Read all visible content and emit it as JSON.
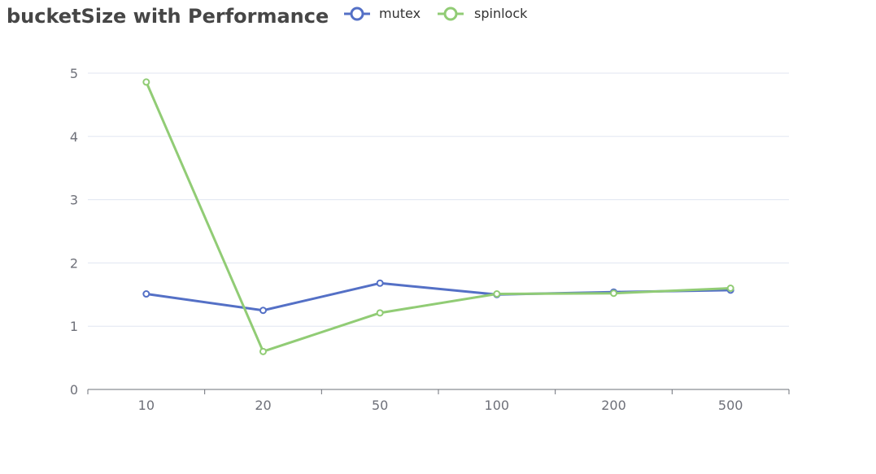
{
  "chart_data": {
    "type": "line",
    "title": "bucketSize with Performance",
    "categories": [
      "10",
      "20",
      "50",
      "100",
      "200",
      "500"
    ],
    "series": [
      {
        "name": "mutex",
        "color": "#5470c6",
        "values": [
          1.51,
          1.25,
          1.68,
          1.5,
          1.54,
          1.57
        ]
      },
      {
        "name": "spinlock",
        "color": "#91cc75",
        "values": [
          4.86,
          0.6,
          1.21,
          1.51,
          1.52,
          1.6
        ]
      }
    ],
    "ylim": [
      0,
      5
    ],
    "yticks": [
      0,
      1,
      2,
      3,
      4,
      5
    ],
    "xlabel": "",
    "ylabel": "",
    "grid": true,
    "legend": "top"
  }
}
